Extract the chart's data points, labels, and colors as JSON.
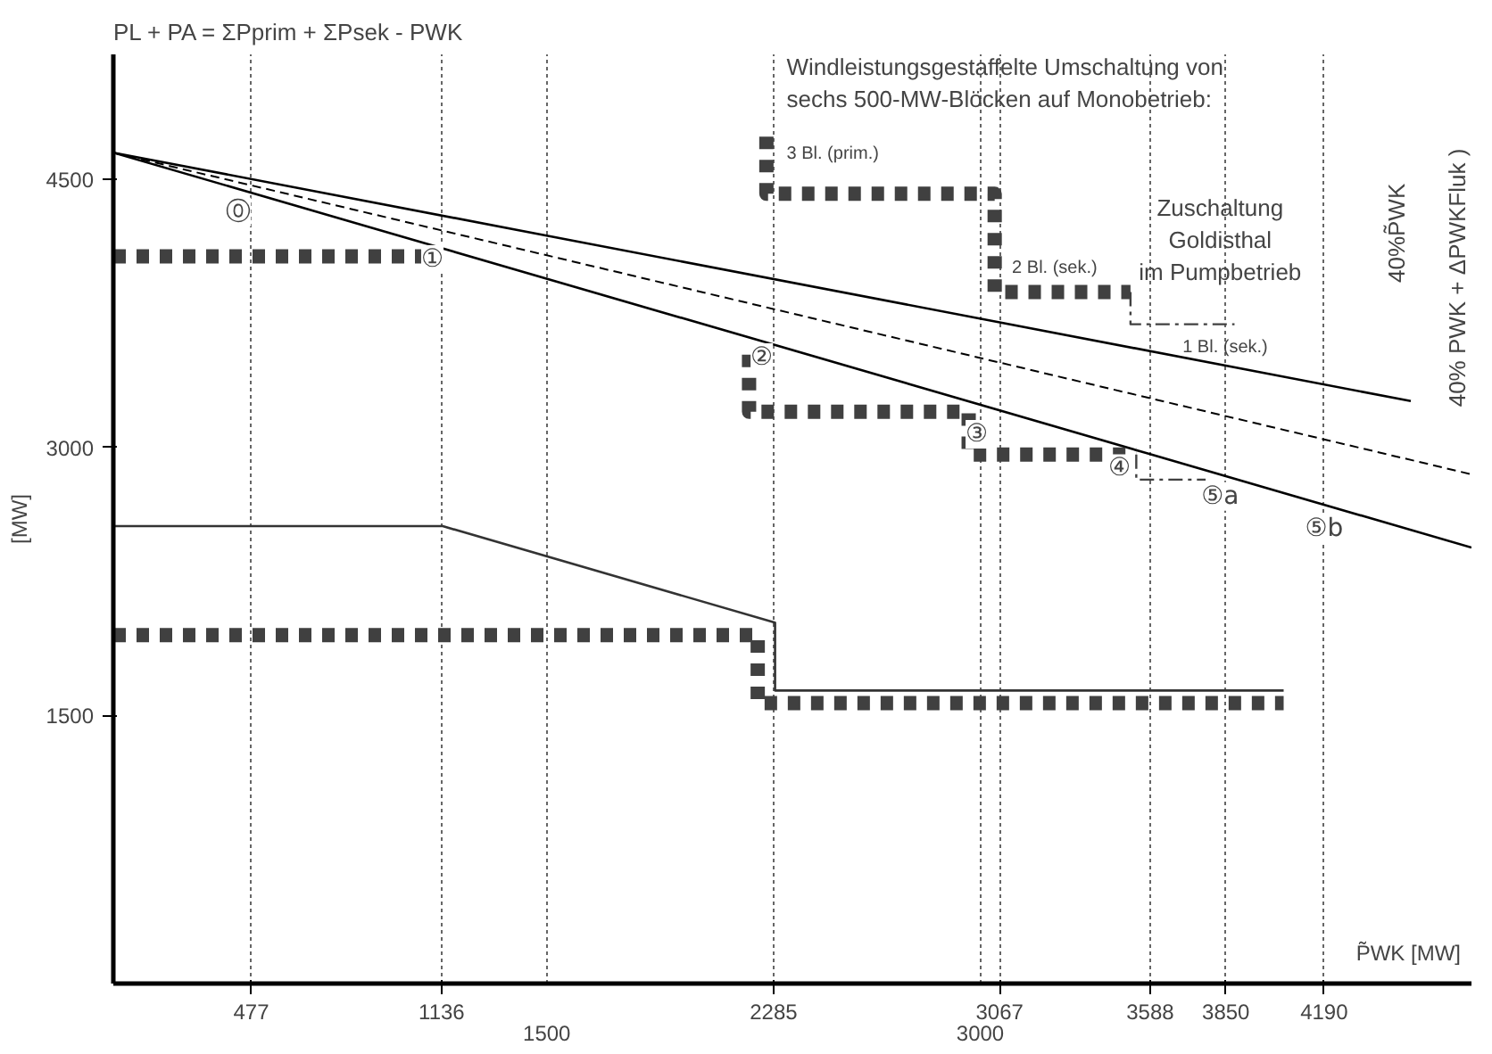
{
  "chart_data": {
    "type": "line",
    "title": "PL + PA = ΣPprim + ΣPsek - PWK",
    "ylabel": "[MW]",
    "xlabel": "P̃WK [MW]",
    "xlim": [
      0,
      4700
    ],
    "ylim": [
      0,
      5200
    ],
    "xticks": [
      477,
      1136,
      2285,
      3067,
      3588,
      3850,
      4190
    ],
    "x2lim": [
      0,
      4700
    ],
    "x2ticks": [
      1500,
      3000
    ],
    "yticks": [
      1500,
      3000,
      4500
    ],
    "grid": "x",
    "series": [
      {
        "color": "#000000",
        "line_style": "solid",
        "x": [
          0,
          4490
        ],
        "values": [
          4650,
          3260
        ]
      },
      {
        "color": "#000000",
        "line_style": "dotted",
        "x": [
          0,
          4700
        ],
        "values": [
          4650,
          2850
        ]
      },
      {
        "color": "#000000",
        "line_style": "solid",
        "x": [
          0,
          4700
        ],
        "values": [
          4650,
          2440
        ]
      },
      {
        "color": "#333333",
        "line_style": "solid",
        "x": [
          0,
          1140,
          2290,
          2290,
          4050
        ],
        "values": [
          2560,
          2560,
          2020,
          1640,
          1640
        ]
      },
      {
        "color": "#404040",
        "line_style": "dashed",
        "x": [
          0,
          1100
        ],
        "values": [
          4070,
          4070
        ]
      },
      {
        "color": "#404040",
        "line_style": "dashed",
        "x": [
          0,
          2230,
          2230,
          4050
        ],
        "values": [
          1950,
          1950,
          1570,
          1570
        ]
      },
      {
        "color": "#404040",
        "line_style": "dashed",
        "x": [
          2260,
          2260,
          3050,
          3050,
          3520
        ],
        "values": [
          4740,
          4420,
          4420,
          3870,
          3870
        ]
      },
      {
        "color": "#404040",
        "line_style": "dashdot",
        "x": [
          3520,
          3520,
          3880
        ],
        "values": [
          3870,
          3690,
          3690
        ]
      },
      {
        "color": "#404040",
        "line_style": "dashed",
        "x": [
          2200,
          2200,
          2960,
          2960,
          3540
        ],
        "values": [
          3520,
          3200,
          3200,
          2960,
          2960
        ]
      },
      {
        "color": "#404040",
        "line_style": "dashdot",
        "x": [
          3540,
          3540,
          3780
        ],
        "values": [
          2960,
          2820,
          2820
        ]
      }
    ],
    "annotations": [
      {
        "text": "⓪",
        "x": 433,
        "y": 4318
      },
      {
        "text": "①",
        "x": 1104,
        "y": 4053
      },
      {
        "text": "②",
        "x": 2244,
        "y": 3504
      },
      {
        "text": "③",
        "x": 2988,
        "y": 3074
      },
      {
        "text": "④",
        "x": 3482,
        "y": 2882
      },
      {
        "text": "⑤a",
        "x": 3830,
        "y": 2726
      },
      {
        "text": "⑤b",
        "x": 4190,
        "y": 2543
      },
      "3 Bl. (prim.)",
      "2 Bl. (sek.)",
      "1 Bl. (sek.)",
      "Windleistungsgestaffelte Umschaltung von",
      "sechs 500-MW-Blöcken auf Monobetrieb:",
      "Zuschaltung",
      "Goldisthal",
      "im Pumpbetrieb",
      "40%P̃WK",
      "40% PWK + ΔPWKFluk )"
    ]
  }
}
